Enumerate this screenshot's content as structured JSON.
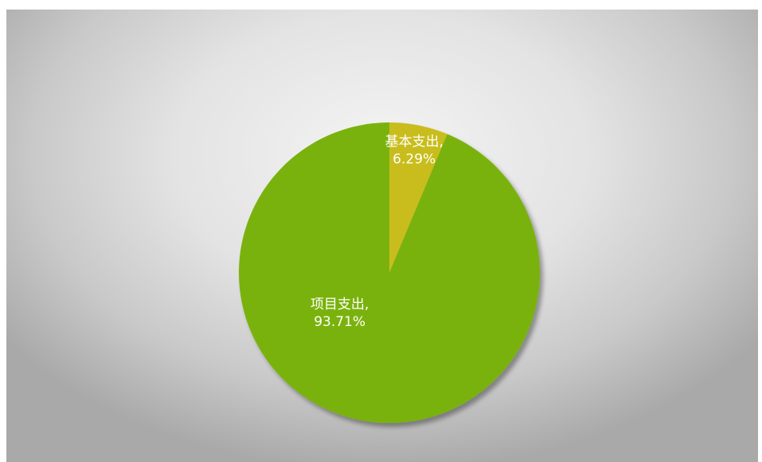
{
  "chart_data": {
    "type": "pie",
    "title": "",
    "start_angle_deg": 0,
    "direction": "clockwise",
    "slices": [
      {
        "label": "基本支出,",
        "value_text": "6.29%",
        "value": 6.29,
        "color": "#c8bd1a"
      },
      {
        "label": "项目支出,",
        "value_text": "93.71%",
        "value": 93.71,
        "color": "#7ab20f"
      }
    ]
  }
}
